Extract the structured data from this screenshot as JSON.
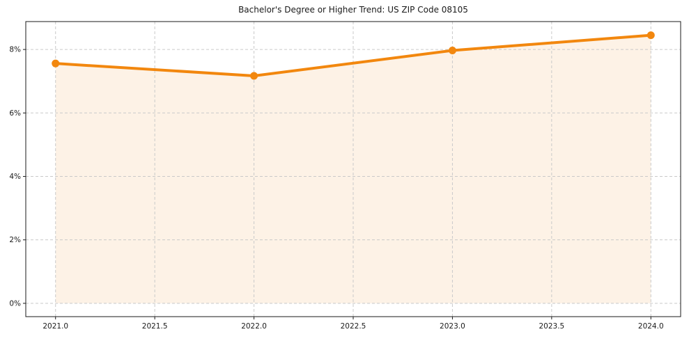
{
  "figure": {
    "background_color": "#ffffff"
  },
  "chart_data": {
    "type": "area",
    "title": "Bachelor's Degree or Higher Trend: US ZIP Code 08105",
    "x": [
      2021,
      2022,
      2023,
      2024
    ],
    "values": [
      7.56,
      7.17,
      7.97,
      8.45
    ],
    "xlabel": "",
    "ylabel": "",
    "xlim": [
      2020.85,
      2024.15
    ],
    "ylim": [
      -0.42,
      8.88
    ],
    "x_ticks": [
      2021.0,
      2021.5,
      2022.0,
      2022.5,
      2023.0,
      2023.5,
      2024.0
    ],
    "x_tick_labels": [
      "2021.0",
      "2021.5",
      "2022.0",
      "2022.5",
      "2023.0",
      "2023.5",
      "2024.0"
    ],
    "y_ticks": [
      0,
      2,
      4,
      6,
      8
    ],
    "y_tick_labels": [
      "0%",
      "2%",
      "4%",
      "6%",
      "8%"
    ],
    "grid": true,
    "grid_style": "dashed",
    "legend_position": "none",
    "baseline": 0,
    "line_color": "#f2870e",
    "marker_color": "#f2870e",
    "fill_color": "#fdf2e6",
    "grid_color": "#c9c9c9",
    "axis_color": "#1a1a1a",
    "tick_label_color": "#1a1a1a"
  }
}
